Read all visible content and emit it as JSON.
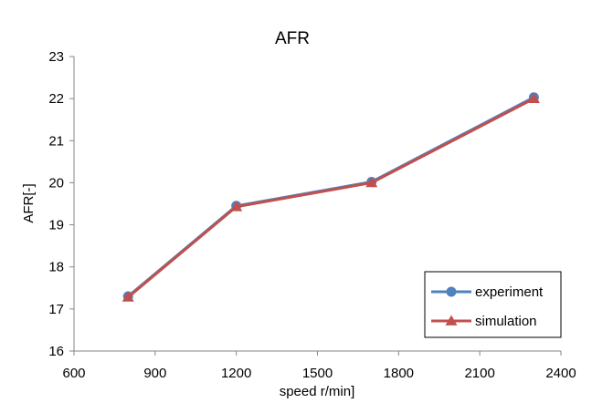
{
  "chart_data": {
    "type": "line",
    "title": "AFR",
    "xlabel": "speed r/min]",
    "ylabel": "AFR[-]",
    "xlim": [
      600,
      2400
    ],
    "ylim": [
      16,
      23
    ],
    "xticks": [
      600,
      900,
      1200,
      1500,
      1800,
      2100,
      2400
    ],
    "yticks": [
      16,
      17,
      18,
      19,
      20,
      21,
      22,
      23
    ],
    "grid": false,
    "legend": "bottom-right",
    "series": [
      {
        "name": "experiment",
        "marker": "circle",
        "color": "#4f81bd",
        "x": [
          800,
          1200,
          1700,
          2300
        ],
        "values": [
          17.3,
          19.45,
          20.02,
          22.03
        ]
      },
      {
        "name": "simulation",
        "marker": "triangle",
        "color": "#c0504d",
        "x": [
          800,
          1200,
          1700,
          2300
        ],
        "values": [
          17.28,
          19.43,
          20.0,
          22.0
        ]
      }
    ]
  }
}
